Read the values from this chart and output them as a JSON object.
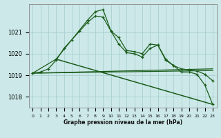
{
  "title": "Graphe pression niveau de la mer (hPa)",
  "bg_color": "#cce8e8",
  "grid_color": "#aad0d0",
  "line_color": "#1a5c1a",
  "ylim": [
    1017.5,
    1022.3
  ],
  "yticks": [
    1018,
    1019,
    1020,
    1021
  ],
  "xlim": [
    -0.5,
    23.5
  ],
  "series1_x": [
    0,
    1,
    2,
    3,
    4,
    5,
    6,
    7,
    8,
    9,
    10,
    11,
    12,
    13,
    14,
    15,
    16,
    17,
    18,
    19,
    20,
    21,
    22,
    23
  ],
  "series1_y": [
    1019.1,
    1019.15,
    1019.3,
    1019.7,
    1020.25,
    1020.65,
    1021.05,
    1021.45,
    1021.75,
    1021.7,
    1021.05,
    1020.45,
    1020.05,
    1020.0,
    1019.85,
    1020.25,
    1020.4,
    1019.75,
    1019.45,
    1019.3,
    1019.25,
    1019.2,
    1019.05,
    1018.75
  ],
  "series2_x": [
    0,
    3,
    7,
    8,
    9,
    10,
    11,
    12,
    13,
    14,
    15,
    16,
    17,
    18,
    19,
    20,
    21,
    22,
    23
  ],
  "series2_y": [
    1019.1,
    1019.75,
    1021.55,
    1021.95,
    1022.05,
    1021.05,
    1020.75,
    1020.15,
    1020.1,
    1020.0,
    1020.45,
    1020.4,
    1019.7,
    1019.45,
    1019.15,
    1019.15,
    1019.05,
    1018.55,
    1017.65
  ],
  "trend1_x": [
    0,
    23
  ],
  "trend1_y": [
    1019.1,
    1019.3
  ],
  "trend2_x": [
    0,
    23
  ],
  "trend2_y": [
    1019.1,
    1019.22
  ],
  "trend3_x": [
    3,
    23
  ],
  "trend3_y": [
    1019.75,
    1017.65
  ],
  "x_labels": [
    "0",
    "1",
    "2",
    "3",
    "4",
    "5",
    "6",
    "7",
    "8",
    "9",
    "10",
    "11",
    "12",
    "13",
    "14",
    "15",
    "16",
    "17",
    "18",
    "19",
    "20",
    "21",
    "22",
    "23"
  ]
}
